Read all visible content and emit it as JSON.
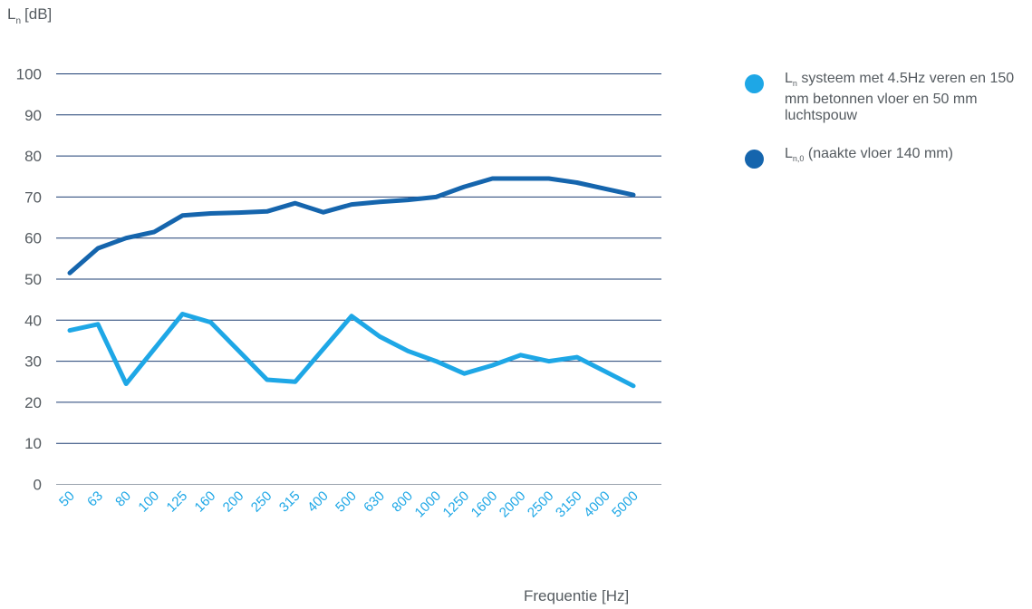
{
  "chart_data": {
    "type": "line",
    "ylabel_main": "L",
    "ylabel_sub": "n",
    "ylabel_unit": "[dB]",
    "xlabel": "Frequentie [Hz]",
    "ylim": [
      0,
      100
    ],
    "yticks": [
      0,
      10,
      20,
      30,
      40,
      50,
      60,
      70,
      80,
      90,
      100
    ],
    "grid": true,
    "legend_position": "right",
    "categories": [
      "50",
      "63",
      "80",
      "100",
      "125",
      "160",
      "200",
      "250",
      "315",
      "400",
      "500",
      "630",
      "800",
      "1000",
      "1250",
      "1600",
      "2000",
      "2500",
      "3150",
      "4000",
      "5000"
    ],
    "series": [
      {
        "legend_main": "L",
        "legend_sub": "n",
        "legend_text": " systeem met 4.5Hz veren en 150 mm betonnen vloer en 50 mm luchtspouw",
        "color": "#1ea7e6",
        "values": [
          37.5,
          39,
          24.5,
          33,
          41.5,
          39.5,
          32.5,
          25.5,
          25,
          33,
          41,
          36,
          32.5,
          30,
          27,
          29,
          31.5,
          30,
          31,
          27.5,
          24
        ]
      },
      {
        "legend_main": "L",
        "legend_sub": "n,0",
        "legend_text": " (naakte vloer 140 mm)",
        "color": "#1565ad",
        "values": [
          51.5,
          57.5,
          60,
          61.5,
          65.5,
          66,
          66.2,
          66.5,
          68.5,
          66.3,
          68.2,
          68.8,
          69.3,
          70,
          72.5,
          74.5,
          74.5,
          74.5,
          73.5,
          72,
          70.5
        ]
      }
    ]
  }
}
